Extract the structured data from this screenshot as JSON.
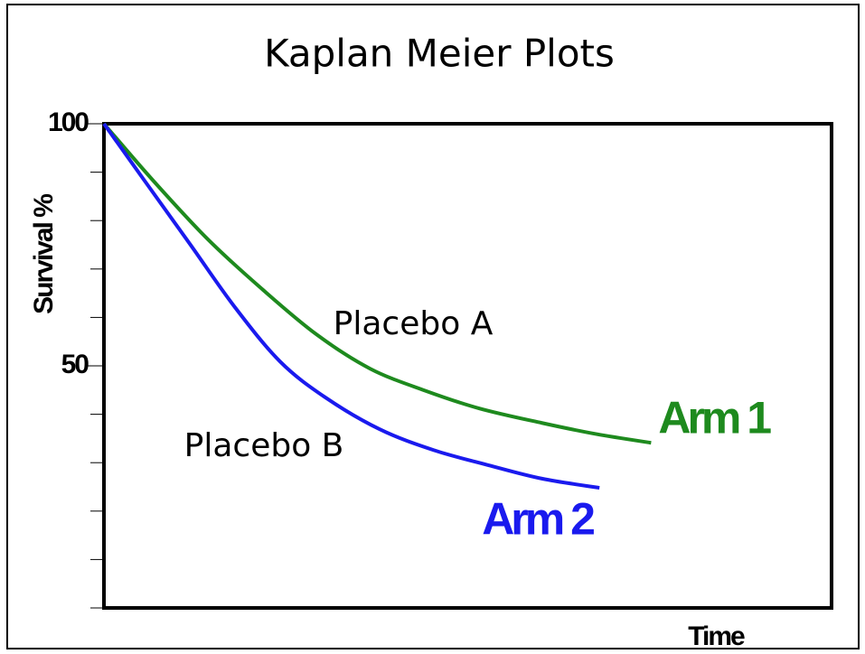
{
  "chart_data": {
    "type": "line",
    "title": "Kaplan Meier Plots",
    "ylabel": "Survival %",
    "xlabel": "Time",
    "ylim": [
      0,
      100
    ],
    "yticks": [
      50,
      100
    ],
    "minor_yticks": [
      0,
      10,
      20,
      30,
      40,
      50,
      60,
      70,
      80,
      90,
      100
    ],
    "xlim": [
      0,
      100
    ],
    "annotations": [
      "Placebo A",
      "Placebo B"
    ],
    "series": [
      {
        "name": "Arm 1",
        "color": "#1e8a1e",
        "x": [
          0,
          6.8,
          14.3,
          21.7,
          29.2,
          36.6,
          44.1,
          51.6,
          60.2,
          67.7,
          75.2
        ],
        "values": [
          100,
          88.2,
          76.1,
          65.9,
          56.5,
          49.4,
          44.9,
          41.2,
          38.2,
          35.9,
          34.1
        ]
      },
      {
        "name": "Arm 2",
        "color": "#1a1aee",
        "x": [
          0,
          5.6,
          11.8,
          18.0,
          24.2,
          30.4,
          37.9,
          45.3,
          52.8,
          60.2,
          68.1
        ],
        "values": [
          100,
          88.2,
          75.2,
          62.1,
          50.9,
          43.5,
          36.9,
          32.6,
          29.5,
          26.7,
          24.8
        ]
      }
    ]
  }
}
